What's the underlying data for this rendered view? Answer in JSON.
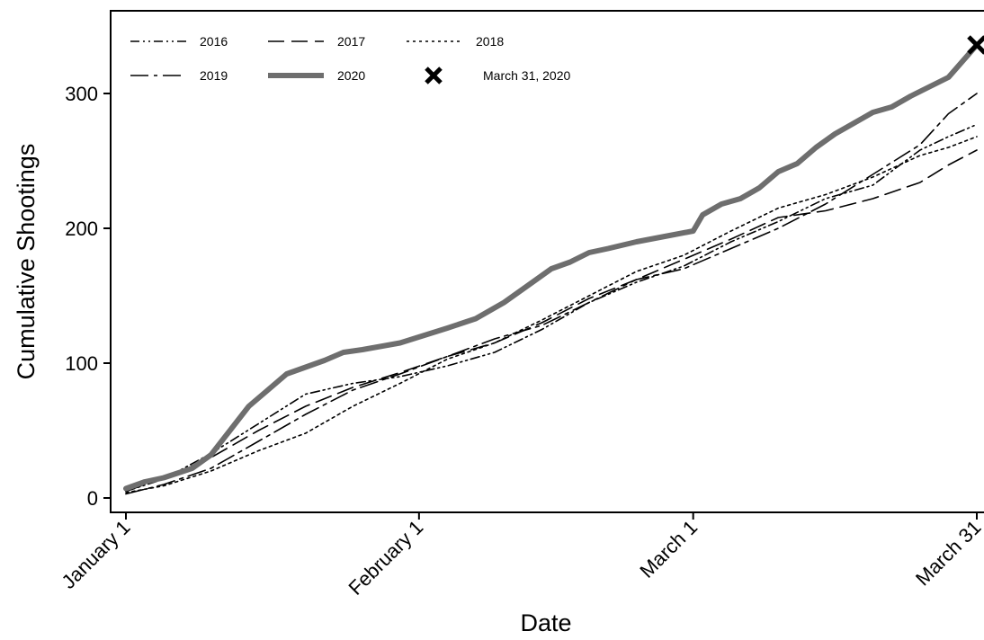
{
  "chart_data": {
    "type": "line",
    "title": "",
    "xlabel": "Date",
    "ylabel": "Cumulative Shootings",
    "x_ticks": [
      "January 1",
      "February 1",
      "March 1",
      "March 31"
    ],
    "x_tick_days": [
      1,
      32,
      61,
      91
    ],
    "y_ticks": [
      0,
      100,
      200,
      300
    ],
    "xlim": [
      0,
      91.3
    ],
    "ylim": [
      -12,
      352
    ],
    "grid": false,
    "legend_position": "top-left, inside",
    "x_unit": "day of year",
    "series": [
      {
        "name": "2016",
        "style": "dash-dot-dot",
        "color": "#000000",
        "x": [
          1,
          5,
          10,
          15,
          20,
          25,
          30,
          35,
          40,
          45,
          50,
          55,
          60,
          65,
          70,
          75,
          80,
          85,
          88,
          91
        ],
        "y": [
          5,
          14,
          33,
          55,
          77,
          85,
          90,
          98,
          108,
          125,
          145,
          160,
          172,
          190,
          205,
          222,
          232,
          258,
          268,
          277
        ]
      },
      {
        "name": "2017",
        "style": "long-dash",
        "color": "#000000",
        "x": [
          1,
          5,
          10,
          15,
          20,
          25,
          30,
          35,
          40,
          45,
          50,
          55,
          60,
          65,
          70,
          75,
          80,
          85,
          88,
          91
        ],
        "y": [
          5,
          15,
          30,
          50,
          68,
          82,
          93,
          105,
          115,
          130,
          148,
          162,
          177,
          192,
          208,
          213,
          222,
          234,
          247,
          258
        ]
      },
      {
        "name": "2018",
        "style": "short-dash",
        "color": "#000000",
        "x": [
          1,
          5,
          10,
          15,
          20,
          25,
          30,
          35,
          40,
          45,
          50,
          55,
          60,
          65,
          70,
          75,
          80,
          85,
          88,
          91
        ],
        "y": [
          4,
          9,
          20,
          35,
          48,
          68,
          85,
          103,
          115,
          132,
          150,
          168,
          180,
          198,
          215,
          225,
          238,
          254,
          260,
          268
        ]
      },
      {
        "name": "2019",
        "style": "long-dash-dot",
        "color": "#000000",
        "x": [
          1,
          5,
          10,
          15,
          20,
          25,
          30,
          35,
          40,
          45,
          50,
          55,
          60,
          65,
          70,
          75,
          80,
          85,
          88,
          91
        ],
        "y": [
          3,
          10,
          22,
          42,
          62,
          80,
          92,
          105,
          118,
          128,
          145,
          162,
          170,
          185,
          200,
          218,
          240,
          262,
          285,
          300
        ]
      },
      {
        "name": "2020",
        "style": "thick-solid",
        "color": "#6e6e6e",
        "x": [
          1,
          3,
          5,
          8,
          10,
          12,
          14,
          16,
          18,
          20,
          22,
          24,
          26,
          30,
          35,
          38,
          41,
          44,
          46,
          48,
          50,
          52,
          55,
          58,
          61,
          62,
          64,
          66,
          68,
          70,
          72,
          74,
          76,
          78,
          80,
          82,
          84,
          86,
          88,
          89,
          91
        ],
        "y": [
          7,
          12,
          15,
          22,
          32,
          50,
          68,
          80,
          92,
          97,
          102,
          108,
          110,
          115,
          126,
          133,
          145,
          160,
          170,
          175,
          182,
          185,
          190,
          194,
          198,
          210,
          218,
          222,
          230,
          242,
          248,
          260,
          270,
          278,
          286,
          290,
          298,
          305,
          312,
          320,
          336
        ]
      },
      {
        "name": "March 31, 2020",
        "style": "x-marker",
        "color": "#000000",
        "x": [
          91
        ],
        "y": [
          336
        ]
      }
    ]
  }
}
